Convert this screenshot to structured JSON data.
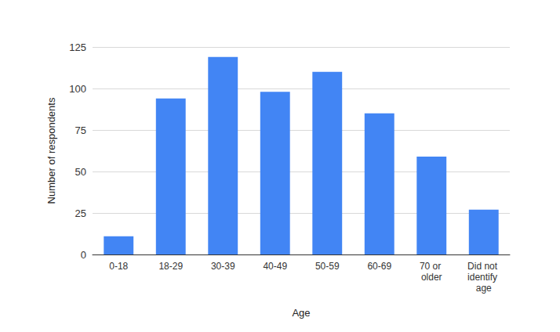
{
  "chart_data": {
    "type": "bar",
    "x_label": "Age",
    "y_label": "Number of respondents",
    "categories": [
      "0-18",
      "18-29",
      "30-39",
      "40-49",
      "50-59",
      "60-69",
      "70 or older",
      "Did not identify age"
    ],
    "values": [
      11,
      94,
      119,
      98,
      110,
      85,
      59,
      27
    ],
    "color": "#4285f4",
    "ylim": [
      0,
      125
    ],
    "yticks": [
      0,
      25,
      50,
      75,
      100,
      125
    ],
    "grid": true
  }
}
